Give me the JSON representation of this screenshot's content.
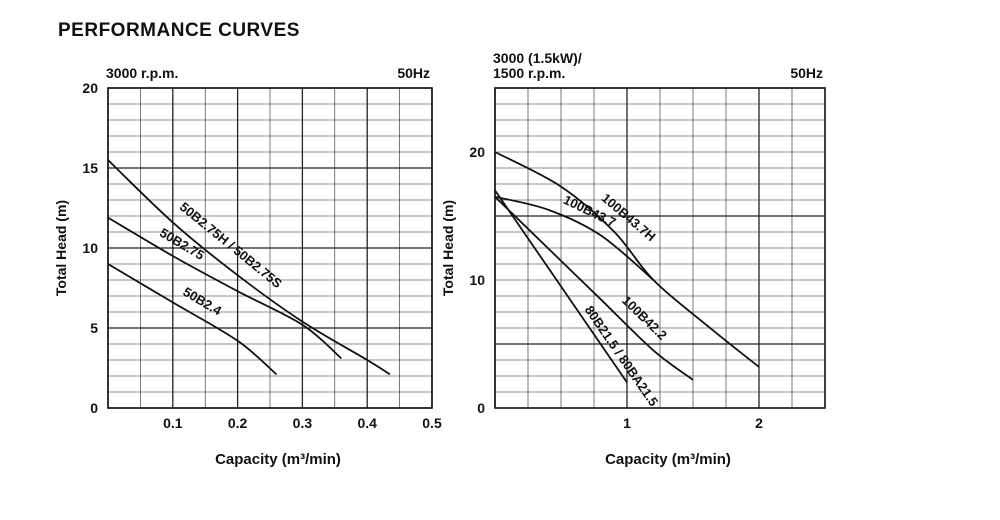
{
  "page": {
    "title": "PERFORMANCE CURVES"
  },
  "chart_data": [
    {
      "type": "line",
      "speed_label": "3000 r.p.m.",
      "frequency_label": "50Hz",
      "xlabel": "Capacity (m³/min)",
      "ylabel": "Total Head (m)",
      "xlim": [
        0,
        0.5
      ],
      "ylim": [
        0,
        20
      ],
      "x_ticks": [
        0.1,
        0.2,
        0.3,
        0.4,
        0.5
      ],
      "y_ticks": [
        0,
        5,
        10,
        15,
        20
      ],
      "grid": true,
      "series": [
        {
          "name": "50B2.75H / 50B2.75S",
          "x": [
            0,
            0.1,
            0.2,
            0.3,
            0.4,
            0.435
          ],
          "y": [
            15.5,
            11.6,
            8.3,
            5.4,
            3.0,
            2.1
          ]
        },
        {
          "name": "50B2.75",
          "x": [
            0,
            0.1,
            0.2,
            0.3,
            0.36
          ],
          "y": [
            11.9,
            9.5,
            7.3,
            5.2,
            3.1
          ]
        },
        {
          "name": "50B2.4",
          "x": [
            0,
            0.1,
            0.2,
            0.26
          ],
          "y": [
            9.0,
            6.6,
            4.2,
            2.1
          ]
        }
      ]
    },
    {
      "type": "line",
      "speed_label": "3000 (1.5kW)/\n1500 r.p.m.",
      "speed_label_lines": [
        "3000 (1.5kW)/",
        "1500 r.p.m."
      ],
      "frequency_label": "50Hz",
      "xlabel": "Capacity (m³/min)",
      "ylabel": "Total Head (m)",
      "xlim": [
        0,
        2.5
      ],
      "ylim": [
        0,
        25
      ],
      "x_ticks": [
        1,
        2
      ],
      "y_ticks": [
        0,
        10,
        20
      ],
      "grid": true,
      "series": [
        {
          "name": "100B43.7H",
          "x": [
            0,
            0.5,
            0.9,
            1.2,
            1.6,
            2.0
          ],
          "y": [
            20.0,
            17.3,
            13.8,
            10.0,
            6.5,
            3.2
          ]
        },
        {
          "name": "100B43.7",
          "x": [
            0,
            0.4,
            0.8,
            1.2
          ],
          "y": [
            16.5,
            15.5,
            13.5,
            10.0
          ]
        },
        {
          "name": "100B42.2",
          "x": [
            0,
            0.4,
            0.8,
            1.2,
            1.5
          ],
          "y": [
            16.5,
            12.5,
            8.5,
            4.5,
            2.2
          ]
        },
        {
          "name": "80B21.5 / 80BA21.5",
          "x": [
            0,
            0.3,
            0.6,
            0.9,
            1.0
          ],
          "y": [
            17.0,
            12.5,
            8.0,
            3.5,
            2.0
          ]
        }
      ]
    }
  ]
}
